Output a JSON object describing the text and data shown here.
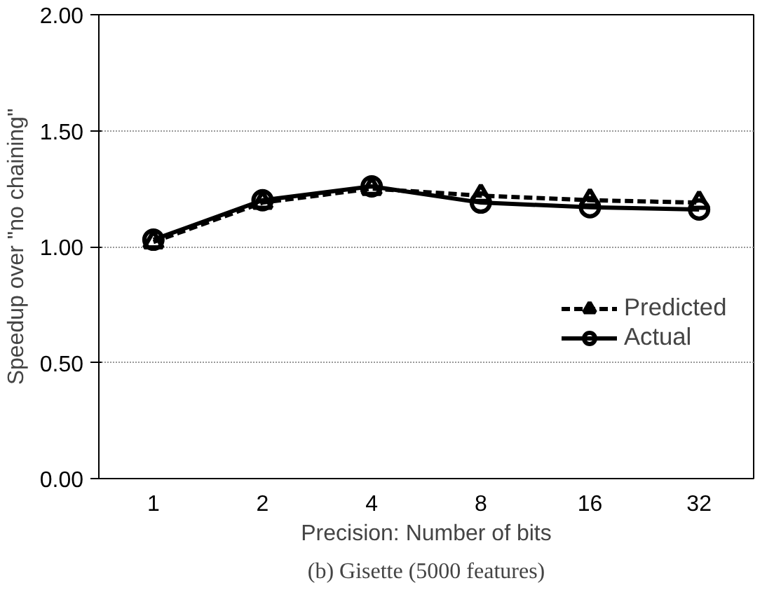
{
  "chart_data": {
    "type": "line",
    "xlabel": "Precision: Number of bits",
    "ylabel": "Speedup over \"no chaining\"",
    "categories": [
      "1",
      "2",
      "4",
      "8",
      "16",
      "32"
    ],
    "series": [
      {
        "name": "Predicted",
        "color": "#000000",
        "marker": "triangle",
        "line_style": "dashed",
        "values": [
          1.02,
          1.19,
          1.25,
          1.22,
          1.2,
          1.19
        ]
      },
      {
        "name": "Actual",
        "color": "#000000",
        "marker": "circle",
        "line_style": "solid",
        "values": [
          1.03,
          1.2,
          1.26,
          1.19,
          1.17,
          1.16
        ]
      }
    ],
    "ylim": [
      0,
      2
    ],
    "yticks": [
      {
        "value": 0,
        "label": "0.00"
      },
      {
        "value": 0.5,
        "label": "0.50"
      },
      {
        "value": 1,
        "label": "1.00"
      },
      {
        "value": 1.5,
        "label": "1.50"
      },
      {
        "value": 2,
        "label": "2.00"
      }
    ],
    "grid": "y",
    "legend": "right",
    "annotations": [
      "(b) Gisette (5000 features)"
    ]
  }
}
